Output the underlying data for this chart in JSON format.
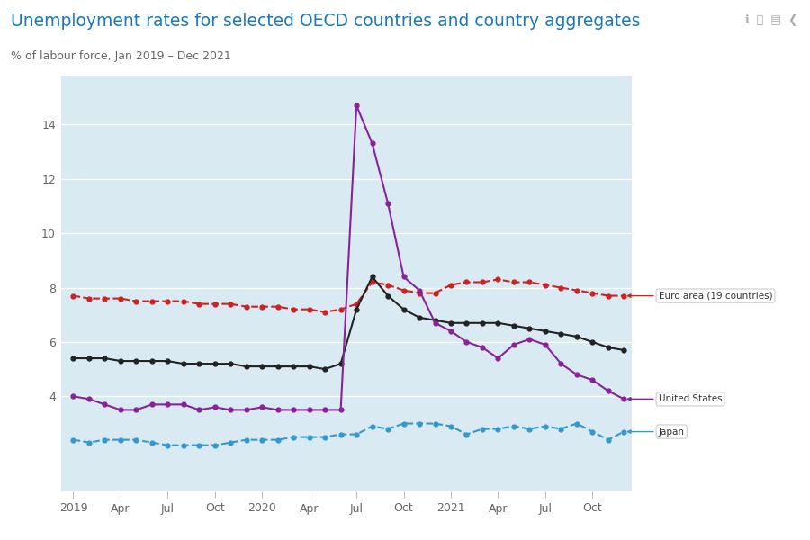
{
  "title": "Unemployment rates for selected OECD countries and country aggregates",
  "subtitle": "% of labour force, Jan 2019 – Dec 2021",
  "bg_white": "#ffffff",
  "bg_chart": "#daeaf3",
  "title_color": "#1a78bb",
  "subtitle_color": "#666666",
  "tick_color": "#666666",
  "grid_color": "#ffffff",
  "xlabel_ticks": [
    "2019",
    "Apr",
    "Jul",
    "Oct",
    "2020",
    "Apr",
    "Jul",
    "Oct",
    "2021",
    "Apr",
    "Jul",
    "Oct"
  ],
  "xtick_pos": [
    0,
    3,
    6,
    9,
    12,
    15,
    18,
    21,
    24,
    27,
    30,
    33
  ],
  "ylim": [
    0.5,
    15.8
  ],
  "yticks": [
    4,
    6,
    8,
    10,
    12,
    14
  ],
  "series": {
    "Euro area (19 countries)": {
      "color": "#cc2222",
      "linestyle": "--",
      "marker": "o",
      "markersize": 3.5,
      "linewidth": 1.5,
      "values": [
        7.7,
        7.6,
        7.6,
        7.6,
        7.5,
        7.5,
        7.5,
        7.5,
        7.4,
        7.4,
        7.4,
        7.3,
        7.3,
        7.3,
        7.2,
        7.2,
        7.1,
        7.2,
        7.4,
        8.2,
        8.1,
        7.9,
        7.8,
        7.8,
        8.1,
        8.2,
        8.2,
        8.3,
        8.2,
        8.2,
        8.1,
        8.0,
        7.9,
        7.8,
        7.7,
        7.7
      ]
    },
    "OECD - Total": {
      "color": "#222222",
      "linestyle": "-",
      "marker": "o",
      "markersize": 3.5,
      "linewidth": 1.5,
      "values": [
        5.4,
        5.4,
        5.4,
        5.3,
        5.3,
        5.3,
        5.3,
        5.2,
        5.2,
        5.2,
        5.2,
        5.1,
        5.1,
        5.1,
        5.1,
        5.1,
        5.0,
        5.2,
        7.2,
        8.4,
        7.7,
        7.2,
        6.9,
        6.8,
        6.7,
        6.7,
        6.7,
        6.7,
        6.6,
        6.5,
        6.4,
        6.3,
        6.2,
        6.0,
        5.8,
        5.7
      ]
    },
    "United States": {
      "color": "#882299",
      "linestyle": "-",
      "marker": "o",
      "markersize": 3.5,
      "linewidth": 1.5,
      "values": [
        4.0,
        3.9,
        3.7,
        3.5,
        3.5,
        3.7,
        3.7,
        3.7,
        3.5,
        3.6,
        3.5,
        3.5,
        3.6,
        3.5,
        3.5,
        3.5,
        3.5,
        3.5,
        14.7,
        13.3,
        11.1,
        8.4,
        7.9,
        6.7,
        6.4,
        6.0,
        5.8,
        5.4,
        5.9,
        6.1,
        5.9,
        5.2,
        4.8,
        4.6,
        4.2,
        3.9
      ]
    },
    "Japan": {
      "color": "#3399cc",
      "linestyle": "--",
      "marker": "o",
      "markersize": 3.5,
      "linewidth": 1.5,
      "values": [
        2.4,
        2.3,
        2.4,
        2.4,
        2.4,
        2.3,
        2.2,
        2.2,
        2.2,
        2.2,
        2.3,
        2.4,
        2.4,
        2.4,
        2.5,
        2.5,
        2.5,
        2.6,
        2.6,
        2.9,
        2.8,
        3.0,
        3.0,
        3.0,
        2.9,
        2.6,
        2.8,
        2.8,
        2.9,
        2.8,
        2.9,
        2.8,
        3.0,
        2.7,
        2.4,
        2.7
      ]
    }
  },
  "annotations": [
    {
      "label": "Euro area (19 countries)",
      "series": "Euro area (19 countries)",
      "idx": 35
    },
    {
      "label": "United States",
      "series": "United States",
      "idx": 35
    },
    {
      "label": "Japan",
      "series": "Japan",
      "idx": 35
    }
  ]
}
